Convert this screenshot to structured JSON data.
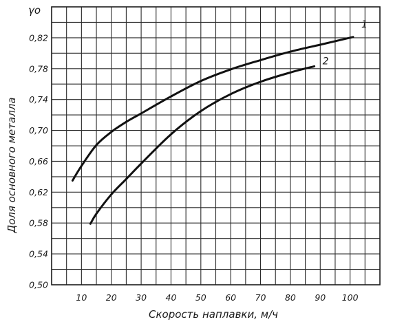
{
  "chart_data": {
    "type": "line",
    "title": "",
    "xlabel": "Скорость наплавки, м/ч",
    "ylabel": "Доля основного металла",
    "y_symbol": "γо",
    "xlim": [
      0,
      110
    ],
    "ylim": [
      0.5,
      0.86
    ],
    "x_ticks": [
      "10",
      "20",
      "30",
      "40",
      "50",
      "60",
      "70",
      "80",
      "90",
      "100"
    ],
    "y_ticks": [
      "0,50",
      "0,54",
      "0,58",
      "0,62",
      "0,66",
      "0,70",
      "0,74",
      "0,78",
      "0,82"
    ],
    "grid": true,
    "series": [
      {
        "name": "1",
        "x": [
          7,
          10,
          15,
          20,
          25,
          30,
          40,
          50,
          60,
          70,
          80,
          90,
          101
        ],
        "y": [
          0.635,
          0.654,
          0.681,
          0.698,
          0.711,
          0.722,
          0.744,
          0.764,
          0.779,
          0.791,
          0.802,
          0.811,
          0.821
        ]
      },
      {
        "name": "2",
        "x": [
          13,
          15,
          20,
          25,
          30,
          40,
          50,
          60,
          70,
          80,
          88
        ],
        "y": [
          0.579,
          0.592,
          0.617,
          0.637,
          0.657,
          0.695,
          0.725,
          0.747,
          0.763,
          0.775,
          0.783
        ]
      }
    ]
  }
}
